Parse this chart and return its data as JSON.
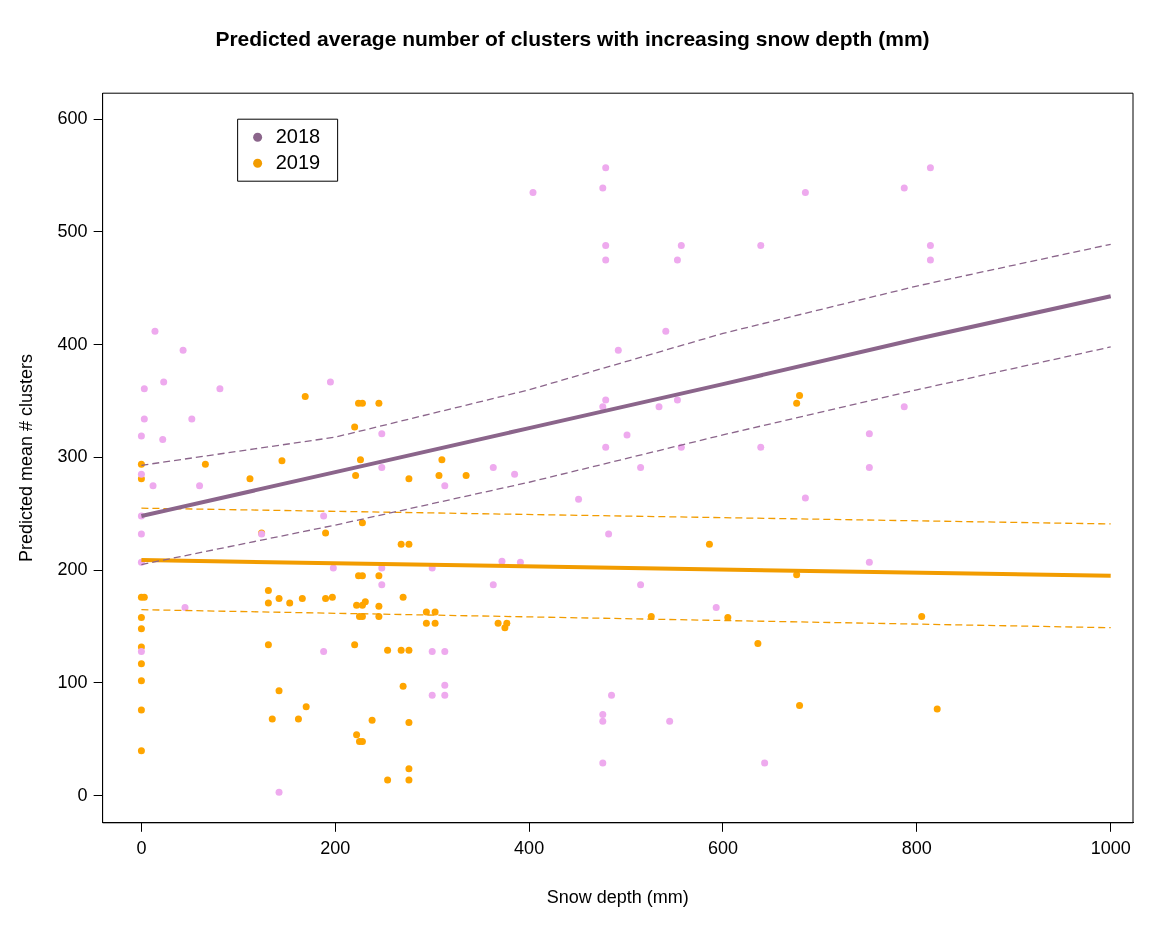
{
  "chart_data": {
    "type": "scatter",
    "title": "Predicted average number of clusters with increasing snow depth (mm)",
    "xlabel": "Snow depth (mm)",
    "ylabel": "Predicted mean # clusters",
    "xlim": [
      -40,
      1023
    ],
    "ylim": [
      -24,
      623
    ],
    "xticks": [
      0,
      200,
      400,
      600,
      800,
      1000
    ],
    "yticks": [
      0,
      100,
      200,
      300,
      400,
      500,
      600
    ],
    "grid": false,
    "legend": "top left",
    "series": [
      {
        "name": "2018",
        "type": "line",
        "color": "#8b658b",
        "line_style": "solid",
        "marker": "none",
        "x": [
          0,
          200,
          400,
          600,
          800,
          1000
        ],
        "values": [
          248,
          287,
          326,
          365,
          405,
          443
        ]
      },
      {
        "type": "line",
        "color": "#8b658b",
        "line_style": "dashed",
        "marker": "none",
        "x": [
          0,
          200,
          400,
          600,
          800,
          1000
        ],
        "values": [
          293,
          318,
          360,
          410,
          452,
          489
        ]
      },
      {
        "type": "line",
        "color": "#8b658b",
        "line_style": "dashed",
        "marker": "none",
        "x": [
          0,
          200,
          400,
          600,
          800,
          1000
        ],
        "values": [
          205,
          240,
          278,
          320,
          360,
          398
        ]
      },
      {
        "name": "2019",
        "type": "line",
        "color": "#f29c00",
        "line_style": "solid",
        "marker": "none",
        "x": [
          0,
          1000
        ],
        "values": [
          209,
          195
        ]
      },
      {
        "type": "line",
        "color": "#f29c00",
        "line_style": "dashed",
        "marker": "none",
        "x": [
          0,
          1000
        ],
        "values": [
          255,
          241
        ]
      },
      {
        "type": "line",
        "color": "#f29c00",
        "line_style": "dashed",
        "marker": "none",
        "x": [
          0,
          1000
        ],
        "values": [
          165,
          149
        ]
      },
      {
        "type": "scatter",
        "color": "#eeaaee",
        "marker": "circle",
        "x": [
          14,
          43,
          3,
          23,
          81,
          3,
          52,
          0,
          22,
          195,
          0,
          12,
          60,
          0,
          0,
          0,
          45,
          0,
          188,
          124,
          198,
          188,
          142,
          479,
          404,
          476,
          479,
          479,
          557,
          553,
          541,
          492,
          479,
          476,
          534,
          553,
          501,
          479,
          557,
          248,
          248,
          515,
          313,
          363,
          385,
          451,
          482,
          248,
          300,
          372,
          391,
          248,
          363,
          515,
          593,
          300,
          313,
          313,
          300,
          313,
          485,
          476,
          476,
          545,
          476,
          814,
          685,
          787,
          639,
          814,
          814,
          787,
          639,
          751,
          751,
          685,
          751,
          643
        ],
        "values": [
          412,
          395,
          361,
          367,
          361,
          334,
          334,
          319,
          316,
          367,
          285,
          275,
          275,
          248,
          232,
          207,
          167,
          128,
          248,
          232,
          202,
          128,
          3,
          557,
          535,
          539,
          488,
          475,
          488,
          475,
          412,
          395,
          351,
          345,
          345,
          351,
          320,
          309,
          309,
          321,
          291,
          291,
          275,
          291,
          285,
          263,
          232,
          202,
          202,
          208,
          207,
          187,
          187,
          187,
          167,
          128,
          128,
          98,
          89,
          89,
          89,
          72,
          66,
          66,
          29,
          557,
          535,
          539,
          488,
          488,
          475,
          345,
          309,
          321,
          291,
          264,
          207,
          29
        ]
      },
      {
        "type": "scatter",
        "color": "#ffa500",
        "marker": "circle",
        "x": [
          0,
          0,
          66,
          145,
          112,
          124,
          190,
          0,
          3,
          131,
          131,
          142,
          153,
          166,
          190,
          197,
          0,
          0,
          0,
          131,
          0,
          0,
          142,
          0,
          170,
          135,
          162,
          0,
          169,
          224,
          228,
          245,
          220,
          226,
          310,
          221,
          276,
          307,
          335,
          228,
          268,
          276,
          586,
          224,
          228,
          245,
          270,
          222,
          228,
          231,
          245,
          225,
          228,
          245,
          294,
          303,
          294,
          303,
          368,
          377,
          375,
          526,
          605,
          220,
          254,
          268,
          276,
          270,
          238,
          276,
          222,
          225,
          228,
          276,
          254,
          276,
          679,
          676,
          676,
          805,
          636,
          679,
          821
        ],
        "values": [
          294,
          281,
          294,
          297,
          281,
          233,
          233,
          176,
          176,
          182,
          171,
          175,
          171,
          175,
          175,
          176,
          158,
          148,
          132,
          134,
          117,
          102,
          93,
          76,
          79,
          68,
          68,
          40,
          354,
          348,
          348,
          348,
          327,
          298,
          298,
          284,
          281,
          284,
          284,
          242,
          223,
          223,
          223,
          195,
          195,
          195,
          176,
          169,
          169,
          172,
          168,
          159,
          159,
          159,
          163,
          163,
          153,
          153,
          153,
          153,
          149,
          159,
          158,
          134,
          129,
          129,
          129,
          97,
          67,
          65,
          54,
          48,
          48,
          24,
          14,
          14,
          355,
          348,
          196,
          159,
          135,
          80,
          77
        ]
      }
    ]
  }
}
